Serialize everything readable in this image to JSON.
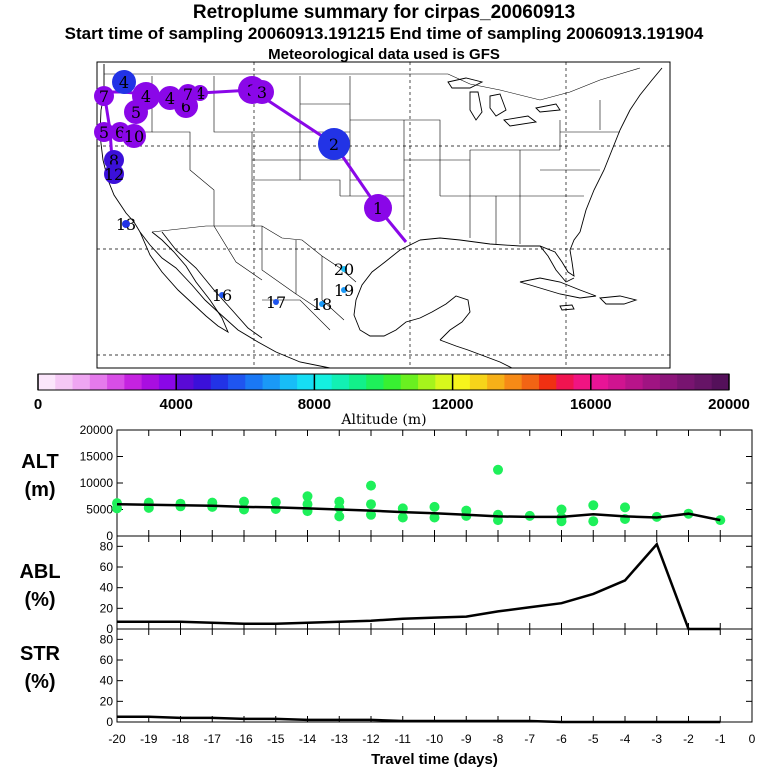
{
  "header": {
    "title": "Retroplume summary for cirpas_20060913",
    "sampling_line": "Start time of sampling 20060913.191215     End time of sampling 20060913.191904",
    "met_line": "Meteorological data used is GFS"
  },
  "colorbar": {
    "label": "Altitude (m)",
    "ticks": [
      0,
      4000,
      8000,
      12000,
      16000,
      20000
    ],
    "colors": [
      "#fbe6fb",
      "#f5c8f5",
      "#efa6f2",
      "#e57aec",
      "#d84ee6",
      "#c523e0",
      "#a90ee0",
      "#8a07e8",
      "#5a0ad6",
      "#3b10d9",
      "#2233e6",
      "#1f55f0",
      "#1a78f5",
      "#1a99f7",
      "#18bdf7",
      "#16def4",
      "#14f0e0",
      "#12f0b4",
      "#12f08a",
      "#1ef05a",
      "#38f032",
      "#6af020",
      "#a6f41c",
      "#d8f81c",
      "#f6f41c",
      "#f6d41a",
      "#f6b018",
      "#f68a16",
      "#f26414",
      "#f03012",
      "#f01450",
      "#f01482",
      "#e81496",
      "#d01490",
      "#b8148a",
      "#a01482",
      "#8c147a",
      "#781470",
      "#661466",
      "#54105a"
    ]
  },
  "map": {
    "region": "western North America",
    "track_labels": [
      {
        "text": "1",
        "color": "#8a07e8"
      },
      {
        "text": "2",
        "color": "#2233e6"
      },
      {
        "text": "3",
        "color": "#8a07e8"
      },
      {
        "text": "3",
        "color": "#8a07e8"
      },
      {
        "text": "4",
        "color": "#8a07e8"
      },
      {
        "text": "4",
        "color": "#8a07e8"
      },
      {
        "text": "4",
        "color": "#8a07e8"
      },
      {
        "text": "5",
        "color": "#8a07e8"
      },
      {
        "text": "6",
        "color": "#8a07e8"
      },
      {
        "text": "7",
        "color": "#8a07e8"
      },
      {
        "text": "7",
        "color": "#8a07e8"
      },
      {
        "text": "4",
        "color": "#2233e6"
      },
      {
        "text": "5",
        "color": "#8a07e8"
      },
      {
        "text": "6",
        "color": "#8a07e8"
      },
      {
        "text": "10",
        "color": "#8a07e8"
      },
      {
        "text": "8",
        "color": "#3b10d9"
      },
      {
        "text": "12",
        "color": "#3b10d9"
      },
      {
        "text": "13",
        "color": "#2233e6"
      },
      {
        "text": "16",
        "color": "#1f55f0"
      },
      {
        "text": "17",
        "color": "#1f55f0"
      },
      {
        "text": "18",
        "color": "#1a99f7"
      },
      {
        "text": "19",
        "color": "#1a99f7"
      },
      {
        "text": "20",
        "color": "#18bdf7"
      }
    ]
  },
  "chart_data": [
    {
      "type": "scatter",
      "title": "ALT (m)",
      "ylabel": "ALT (m)",
      "ylim": [
        0,
        20000
      ],
      "yticks": [
        0,
        5000,
        10000,
        15000,
        20000
      ],
      "xlim": [
        -20,
        0
      ],
      "series": [
        {
          "name": "median altitude",
          "x": [
            -20,
            -19,
            -18,
            -17,
            -16,
            -15,
            -14,
            -13,
            -12,
            -11,
            -10,
            -9,
            -8,
            -7,
            -6,
            -5,
            -4,
            -3,
            -2,
            -1
          ],
          "values": [
            6000,
            5900,
            5800,
            5700,
            5500,
            5400,
            5200,
            5000,
            4800,
            4500,
            4300,
            4000,
            3700,
            3600,
            3600,
            4100,
            3700,
            3500,
            4200,
            3000
          ]
        },
        {
          "name": "altitude spread (points)",
          "points": [
            [
              -20,
              6200
            ],
            [
              -20,
              5200
            ],
            [
              -19,
              6300
            ],
            [
              -19,
              5300
            ],
            [
              -18,
              6100
            ],
            [
              -18,
              5600
            ],
            [
              -17,
              6300
            ],
            [
              -17,
              5500
            ],
            [
              -16,
              6500
            ],
            [
              -16,
              5000
            ],
            [
              -15,
              6400
            ],
            [
              -15,
              5100
            ],
            [
              -14,
              7500
            ],
            [
              -14,
              6000
            ],
            [
              -14,
              4700
            ],
            [
              -13,
              6500
            ],
            [
              -13,
              5300
            ],
            [
              -13,
              3700
            ],
            [
              -12,
              9500
            ],
            [
              -12,
              6000
            ],
            [
              -12,
              4000
            ],
            [
              -11,
              5200
            ],
            [
              -11,
              3500
            ],
            [
              -10,
              5500
            ],
            [
              -10,
              3500
            ],
            [
              -9,
              4800
            ],
            [
              -9,
              3800
            ],
            [
              -8,
              12500
            ],
            [
              -8,
              4000
            ],
            [
              -8,
              3000
            ],
            [
              -7,
              3800
            ],
            [
              -6,
              5000
            ],
            [
              -6,
              3500
            ],
            [
              -6,
              2800
            ],
            [
              -5,
              5800
            ],
            [
              -5,
              2800
            ],
            [
              -4,
              5400
            ],
            [
              -4,
              3200
            ],
            [
              -3,
              3600
            ],
            [
              -2,
              4200
            ],
            [
              -1,
              3000
            ]
          ],
          "color": "#1ef05a"
        }
      ]
    },
    {
      "type": "line",
      "title": "ABL (%)",
      "ylabel": "ABL (%)",
      "ylim": [
        0,
        90
      ],
      "yticks": [
        0,
        20,
        40,
        60,
        80
      ],
      "xlim": [
        -20,
        0
      ],
      "series": [
        {
          "name": "ABL",
          "x": [
            -20,
            -19,
            -18,
            -17,
            -16,
            -15,
            -14,
            -13,
            -12,
            -11,
            -10,
            -9,
            -8,
            -7,
            -6,
            -5,
            -4,
            -3,
            -2,
            -1
          ],
          "values": [
            7,
            7,
            7,
            6,
            5,
            5,
            6,
            7,
            8,
            10,
            11,
            12,
            17,
            21,
            25,
            34,
            47,
            82,
            0,
            0
          ]
        }
      ]
    },
    {
      "type": "line",
      "title": "STR (%)",
      "ylabel": "STR (%)",
      "ylim": [
        0,
        90
      ],
      "yticks": [
        0,
        20,
        40,
        60,
        80
      ],
      "xlim": [
        -20,
        0
      ],
      "xlabel": "Travel time (days)",
      "xticks": [
        -20,
        -19,
        -18,
        -17,
        -16,
        -15,
        -14,
        -13,
        -12,
        -11,
        -10,
        -9,
        -8,
        -7,
        -6,
        -5,
        -4,
        -3,
        -2,
        -1,
        0
      ],
      "series": [
        {
          "name": "STR",
          "x": [
            -20,
            -19,
            -18,
            -17,
            -16,
            -15,
            -14,
            -13,
            -12,
            -11,
            -10,
            -9,
            -8,
            -7,
            -6,
            -5,
            -4,
            -3,
            -2,
            -1
          ],
          "values": [
            5,
            5,
            4,
            4,
            3,
            3,
            2,
            2,
            2,
            1,
            1,
            1,
            1,
            1,
            0,
            0,
            0,
            0,
            0,
            0
          ]
        }
      ]
    }
  ]
}
